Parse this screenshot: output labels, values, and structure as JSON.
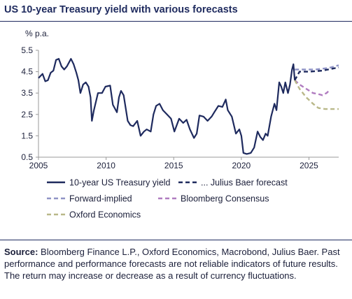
{
  "title": "US 10-year Treasury yield with various forecasts",
  "source_label": "Source:",
  "source_text": "Bloomberg Finance L.P., Oxford Economics, Macrobond, Julius Baer. Past performance and performance forecasts are not reliable indicators of future results. The return may increase or decrease as a result of currency fluctuations.",
  "chart_data": {
    "type": "line",
    "title": "US 10-year Treasury yield with various forecasts",
    "ylabel": "% p.a.",
    "xlabel": "",
    "xlim": [
      2005,
      2027.2
    ],
    "ylim": [
      0.5,
      5.5
    ],
    "x_ticks": [
      "2005",
      "2010",
      "2015",
      "2020",
      "2025"
    ],
    "y_ticks": [
      "5.5",
      "4.5",
      "3.5",
      "2.5",
      "1.5",
      "0.5"
    ],
    "grid": false,
    "legend_position": "bottom",
    "series": [
      {
        "name": "10-year US Treasury yield",
        "color": "#1e2a5e",
        "style": "solid",
        "points": [
          [
            2005.0,
            4.2
          ],
          [
            2005.3,
            4.4
          ],
          [
            2005.5,
            4.05
          ],
          [
            2005.7,
            4.1
          ],
          [
            2005.9,
            4.45
          ],
          [
            2006.1,
            4.55
          ],
          [
            2006.3,
            5.05
          ],
          [
            2006.5,
            5.1
          ],
          [
            2006.7,
            4.75
          ],
          [
            2006.9,
            4.6
          ],
          [
            2007.1,
            4.75
          ],
          [
            2007.4,
            5.1
          ],
          [
            2007.6,
            4.85
          ],
          [
            2007.8,
            4.45
          ],
          [
            2007.95,
            4.1
          ],
          [
            2008.1,
            3.5
          ],
          [
            2008.3,
            3.9
          ],
          [
            2008.5,
            4.0
          ],
          [
            2008.7,
            3.8
          ],
          [
            2008.85,
            3.3
          ],
          [
            2008.95,
            2.2
          ],
          [
            2009.1,
            2.7
          ],
          [
            2009.4,
            3.5
          ],
          [
            2009.7,
            3.5
          ],
          [
            2009.95,
            3.8
          ],
          [
            2010.3,
            3.85
          ],
          [
            2010.5,
            2.95
          ],
          [
            2010.8,
            2.6
          ],
          [
            2010.95,
            3.3
          ],
          [
            2011.1,
            3.6
          ],
          [
            2011.3,
            3.4
          ],
          [
            2011.6,
            2.2
          ],
          [
            2011.8,
            2.0
          ],
          [
            2012.0,
            1.95
          ],
          [
            2012.3,
            2.2
          ],
          [
            2012.55,
            1.5
          ],
          [
            2012.8,
            1.7
          ],
          [
            2013.0,
            1.8
          ],
          [
            2013.3,
            1.7
          ],
          [
            2013.5,
            2.5
          ],
          [
            2013.7,
            2.9
          ],
          [
            2013.95,
            3.0
          ],
          [
            2014.2,
            2.7
          ],
          [
            2014.5,
            2.5
          ],
          [
            2014.8,
            2.3
          ],
          [
            2015.05,
            1.7
          ],
          [
            2015.4,
            2.3
          ],
          [
            2015.7,
            2.1
          ],
          [
            2015.95,
            2.25
          ],
          [
            2016.2,
            1.8
          ],
          [
            2016.5,
            1.4
          ],
          [
            2016.7,
            1.6
          ],
          [
            2016.9,
            2.45
          ],
          [
            2017.2,
            2.4
          ],
          [
            2017.5,
            2.2
          ],
          [
            2017.8,
            2.4
          ],
          [
            2018.0,
            2.6
          ],
          [
            2018.3,
            2.9
          ],
          [
            2018.6,
            2.85
          ],
          [
            2018.85,
            3.2
          ],
          [
            2019.0,
            2.7
          ],
          [
            2019.3,
            2.4
          ],
          [
            2019.6,
            1.6
          ],
          [
            2019.85,
            1.8
          ],
          [
            2020.0,
            1.5
          ],
          [
            2020.15,
            0.7
          ],
          [
            2020.4,
            0.65
          ],
          [
            2020.7,
            0.7
          ],
          [
            2020.95,
            0.95
          ],
          [
            2021.2,
            1.7
          ],
          [
            2021.4,
            1.45
          ],
          [
            2021.6,
            1.3
          ],
          [
            2021.8,
            1.6
          ],
          [
            2021.95,
            1.5
          ],
          [
            2022.2,
            2.4
          ],
          [
            2022.45,
            3.0
          ],
          [
            2022.6,
            2.7
          ],
          [
            2022.8,
            4.0
          ],
          [
            2022.95,
            3.8
          ],
          [
            2023.1,
            3.5
          ],
          [
            2023.25,
            4.0
          ],
          [
            2023.45,
            3.5
          ],
          [
            2023.6,
            3.9
          ],
          [
            2023.75,
            4.6
          ],
          [
            2023.85,
            4.85
          ],
          [
            2023.95,
            4.1
          ]
        ]
      },
      {
        "name": "... Julius Baer forecast",
        "color": "#1e2a5e",
        "style": "dashed",
        "points": [
          [
            2023.95,
            4.1
          ],
          [
            2024.3,
            4.5
          ],
          [
            2025.0,
            4.5
          ],
          [
            2026.0,
            4.55
          ],
          [
            2027.2,
            4.7
          ]
        ]
      },
      {
        "name": "Forward-implied",
        "color": "#8f93c6",
        "style": "dashed",
        "points": [
          [
            2023.95,
            4.6
          ],
          [
            2024.5,
            4.6
          ],
          [
            2025.5,
            4.6
          ],
          [
            2026.5,
            4.68
          ],
          [
            2027.2,
            4.8
          ]
        ]
      },
      {
        "name": "Bloomberg Consensus",
        "color": "#b07cc0",
        "style": "dashed",
        "points": [
          [
            2023.95,
            4.1
          ],
          [
            2024.3,
            3.9
          ],
          [
            2024.8,
            3.7
          ],
          [
            2025.3,
            3.5
          ],
          [
            2025.7,
            3.45
          ],
          [
            2026.0,
            3.4
          ],
          [
            2026.3,
            3.5
          ],
          [
            2026.55,
            3.65
          ]
        ]
      },
      {
        "name": "Oxford Economics",
        "color": "#b9b889",
        "style": "dashed",
        "points": [
          [
            2023.95,
            4.1
          ],
          [
            2024.3,
            3.7
          ],
          [
            2024.8,
            3.3
          ],
          [
            2025.3,
            3.0
          ],
          [
            2025.7,
            2.8
          ],
          [
            2026.2,
            2.75
          ],
          [
            2027.2,
            2.75
          ]
        ]
      }
    ]
  }
}
